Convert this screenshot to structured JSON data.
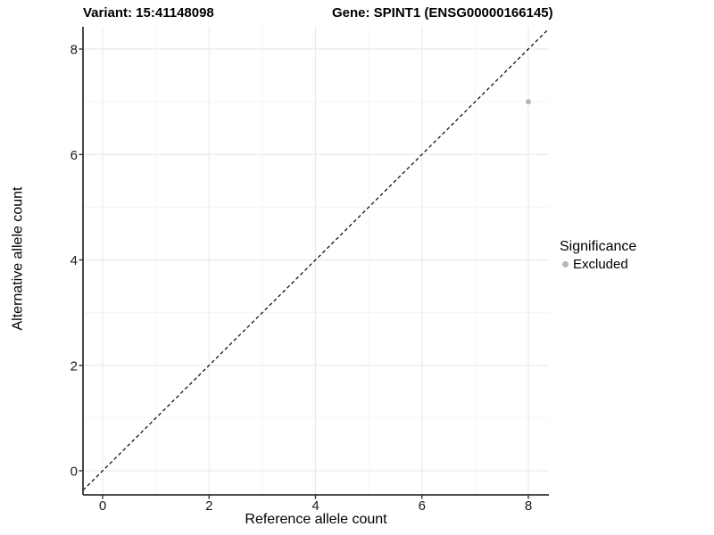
{
  "chart_data": {
    "type": "scatter",
    "title_left": "Variant: 15:41148098",
    "title_right": "Gene: SPINT1 (ENSG00000166145)",
    "xlabel": "Reference allele count",
    "ylabel": "Alternative allele count",
    "xlim": [
      -0.37,
      8.39
    ],
    "ylim": [
      -0.46,
      8.42
    ],
    "xticks": [
      0,
      2,
      4,
      6,
      8
    ],
    "yticks": [
      0,
      2,
      4,
      6,
      8
    ],
    "gridlines": {
      "range": [
        0,
        8
      ],
      "minor_every": 1,
      "major_every": 2
    },
    "points": [
      {
        "x": 8,
        "y": 7,
        "series": "Excluded"
      }
    ],
    "reference_line": {
      "type": "identity",
      "slope": 1,
      "intercept": 0,
      "style": "dashed"
    },
    "legend": {
      "title": "Significance",
      "position": "right",
      "items": [
        {
          "label": "Excluded",
          "color": "#b8b8b8"
        }
      ]
    },
    "colors": {
      "point": "#b8b8b8",
      "grid_major": "#ebebeb",
      "grid_minor": "#f4f4f4",
      "axis": "#333333",
      "reference_line": "#000000",
      "tick_label": "#1a1a1a"
    }
  }
}
